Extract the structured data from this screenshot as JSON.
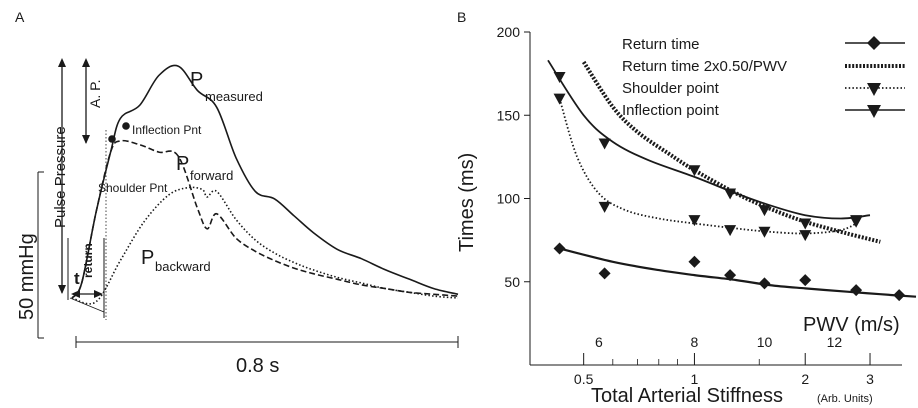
{
  "chart_data": [
    {
      "panel": "A",
      "type": "line",
      "title": "",
      "x_scale_label": "0.8 s",
      "y_scale_label": "50 mmHg",
      "series": [
        {
          "name": "P",
          "subscript": "measured",
          "style": "solid",
          "x": [
            0,
            0.02,
            0.05,
            0.08,
            0.1,
            0.14,
            0.18,
            0.22,
            0.26,
            0.3,
            0.34,
            0.38,
            0.42,
            0.46,
            0.5,
            0.55,
            0.6,
            0.65,
            0.7,
            0.75,
            0.8
          ],
          "y": [
            0,
            8,
            46,
            78,
            96,
            103,
            119,
            124,
            111,
            102,
            75,
            57,
            53,
            44,
            35,
            26,
            21,
            15,
            10,
            5,
            2
          ]
        },
        {
          "name": "P",
          "subscript": "forward",
          "style": "dashed",
          "x": [
            0,
            0.02,
            0.05,
            0.08,
            0.1,
            0.14,
            0.18,
            0.22,
            0.26,
            0.28,
            0.3,
            0.34,
            0.38,
            0.42,
            0.46,
            0.5,
            0.55,
            0.6,
            0.65,
            0.7,
            0.75,
            0.8
          ],
          "y": [
            0,
            8,
            46,
            78,
            84,
            82,
            78,
            76,
            48,
            37,
            45,
            32,
            25,
            20,
            16,
            13,
            10,
            7,
            5,
            3,
            2,
            1
          ]
        },
        {
          "name": "P",
          "subscript": "backward",
          "style": "dotted",
          "x": [
            0,
            0.05,
            0.1,
            0.15,
            0.2,
            0.24,
            0.27,
            0.28,
            0.3,
            0.34,
            0.38,
            0.42,
            0.46,
            0.5,
            0.55,
            0.6,
            0.65,
            0.7,
            0.75,
            0.8
          ],
          "y": [
            0,
            -2,
            20,
            41,
            55,
            59,
            58,
            54,
            57,
            42,
            31,
            24,
            19,
            15,
            11,
            8,
            5,
            3,
            1,
            0
          ]
        }
      ],
      "annotations": {
        "panel_label": "A",
        "inflection": "Inflection Pnt",
        "shoulder": "Shoulder Pnt",
        "augmented_pressure": "A. P.",
        "pulse_pressure": "Pulse Pressure",
        "t_return": "t",
        "t_return_sub": "return"
      }
    },
    {
      "panel": "B",
      "type": "scatter",
      "title": "",
      "xlabel": "Total Arterial Stiffness",
      "xlabel_unit": "(Arb. Units)",
      "ylabel": "Times (ms)",
      "secondary_x_label": "PWV (m/s)",
      "x_scale": "log",
      "xlim": [
        0.4,
        4.0
      ],
      "ylim": [
        0,
        200
      ],
      "x_ticks": [
        "0.5",
        "1",
        "2",
        "3"
      ],
      "x_tick_values": [
        0.5,
        1,
        2,
        3
      ],
      "y_ticks": [
        "50",
        "100",
        "150",
        "200"
      ],
      "y_tick_values": [
        50,
        100,
        150,
        200
      ],
      "pwv_ticks": [
        "6",
        "8",
        "10",
        "12"
      ],
      "pwv_tick_x": [
        0.55,
        1.0,
        1.55,
        2.4
      ],
      "legend_position": "top-right",
      "series": [
        {
          "name": "Return time",
          "marker": "diamond",
          "line": "solid",
          "x": [
            0.43,
            0.57,
            1.0,
            1.25,
            1.55,
            2.0,
            2.75,
            3.6
          ],
          "y": [
            70,
            55,
            62,
            54,
            49,
            51,
            45,
            42
          ],
          "fit_x": [
            0.43,
            0.6,
            0.8,
            1.0,
            1.3,
            1.6,
            2.0,
            2.6,
            3.2,
            4.0
          ],
          "fit_y": [
            70,
            62,
            57,
            54,
            51,
            48,
            46,
            44,
            42.5,
            41
          ]
        },
        {
          "name": "Return time 2x0.50/PWV",
          "marker": "none",
          "line": "thick-dotted",
          "fit_x": [
            0.5,
            0.6,
            0.7,
            0.85,
            1.0,
            1.3,
            1.6,
            2.0,
            2.6,
            3.2
          ],
          "fit_y": [
            182,
            155,
            140,
            127,
            117,
            103,
            94,
            86,
            79,
            74
          ]
        },
        {
          "name": "Shoulder point",
          "marker": "triangle-down",
          "line": "dotted",
          "x": [
            0.43,
            0.57,
            1.0,
            1.25,
            1.55,
            2.0,
            2.75
          ],
          "y": [
            160,
            95,
            87,
            81,
            80,
            78,
            86
          ],
          "fit_x": [
            0.43,
            0.48,
            0.55,
            0.65,
            0.8,
            1.0,
            1.3,
            1.6,
            2.0,
            2.5,
            2.8
          ],
          "fit_y": [
            160,
            125,
            103,
            93,
            88,
            85,
            82,
            80,
            79,
            81,
            86
          ]
        },
        {
          "name": "Inflection point",
          "marker": "triangle-down",
          "line": "solid",
          "x": [
            0.43,
            0.57,
            1.0,
            1.25,
            1.55,
            2.0,
            2.75
          ],
          "y": [
            173,
            133,
            117,
            103,
            93,
            85,
            87
          ],
          "fit_x": [
            0.4,
            0.5,
            0.6,
            0.75,
            1.0,
            1.3,
            1.6,
            2.0,
            2.5,
            3.0
          ],
          "fit_y": [
            183,
            150,
            134,
            123,
            113,
            103,
            96,
            90,
            88,
            90
          ]
        }
      ],
      "annotations": {
        "panel_label": "B"
      }
    }
  ]
}
